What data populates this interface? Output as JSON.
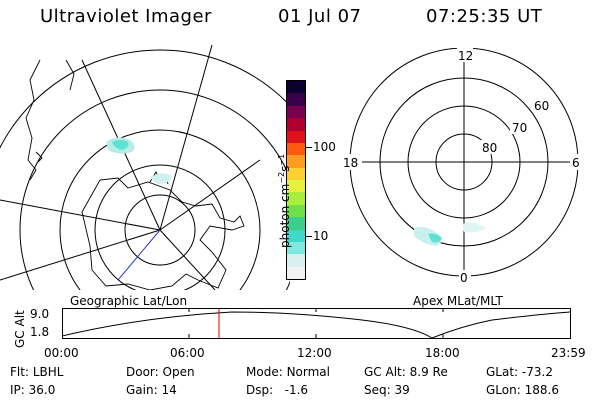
{
  "header": {
    "title": "Ultraviolet Imager",
    "date": "01 Jul 07",
    "time": "07:25:35 UT"
  },
  "geo_panel": {
    "label": "Geographic Lat/Lon"
  },
  "apex_panel": {
    "label": "Apex MLat/MLT",
    "mlt_labels": [
      "12",
      "18",
      "6",
      "0"
    ],
    "lat_labels": [
      "60",
      "70",
      "80"
    ]
  },
  "colorbar": {
    "unit_label": "photon cm",
    "unit_exp1": "−2",
    "unit_mid": "s",
    "unit_exp2": "−1",
    "tick_labels": [
      "100",
      "10"
    ],
    "colors": [
      "#f2f2f2",
      "#d8f0f0",
      "#7fe8e0",
      "#40d8c8",
      "#3ad08a",
      "#6ee04a",
      "#a8ee3a",
      "#e8f040",
      "#ffd030",
      "#ff9c20",
      "#ff5a10",
      "#e0101a",
      "#b00030",
      "#7a0050",
      "#3a004a",
      "#0c0030"
    ]
  },
  "timeline": {
    "ylabel": "GC Alt",
    "yticks": [
      "9.0",
      "1.8"
    ],
    "xticks": [
      "00:00",
      "06:00",
      "12:00",
      "18:00",
      "23:59"
    ],
    "current_time_marker": "07:25:35",
    "marker_color": "#e00000"
  },
  "info": {
    "flt_label": "Flt:",
    "flt_value": "LBHL",
    "ip_label": "IP:",
    "ip_value": "36.0",
    "door_label": "Door:",
    "door_value": "Open",
    "gain_label": "Gain:",
    "gain_value": "14",
    "mode_label": "Mode:",
    "mode_value": "Normal",
    "dsp_label": "Dsp:",
    "dsp_value": "-1.6",
    "gcalt_label": "GC Alt:",
    "gcalt_value": "8.9 Re",
    "seq_label": "Seq:",
    "seq_value": "39",
    "glat_label": "GLat:",
    "glat_value": "-73.2",
    "glon_label": "GLon:",
    "glon_value": "188.6"
  }
}
